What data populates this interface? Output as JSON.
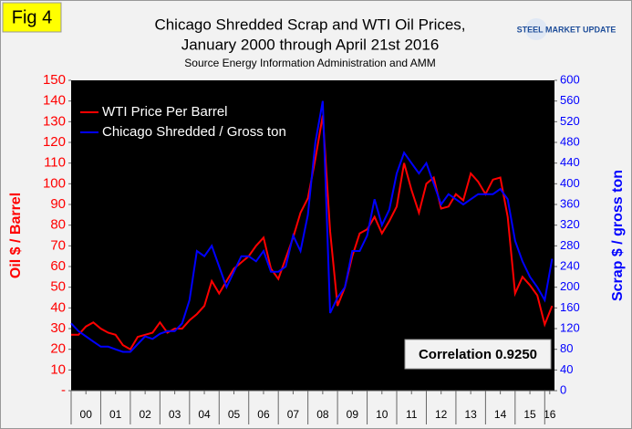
{
  "chart_data": {
    "type": "line",
    "title": "Chicago Shredded Scrap and WTI Oil Prices,",
    "subtitle": "January 2000 through April 21st 2016",
    "source": "Source Energy Information Administration and AMM",
    "fig_label": "Fig 4",
    "logo": "STEEL MARKET UPDATE",
    "annotation": "Correlation 0.9250",
    "y_label": "Oil $ / Barrel",
    "y2_label": "Scrap $ / gross ton",
    "legend": "upper left",
    "x": [
      2000,
      2000.25,
      2000.5,
      2000.75,
      2001,
      2001.25,
      2001.5,
      2001.75,
      2002,
      2002.25,
      2002.5,
      2002.75,
      2003,
      2003.25,
      2003.5,
      2003.75,
      2004,
      2004.25,
      2004.5,
      2004.75,
      2005,
      2005.25,
      2005.5,
      2005.75,
      2006,
      2006.25,
      2006.5,
      2006.75,
      2007,
      2007.25,
      2007.5,
      2007.75,
      2008,
      2008.25,
      2008.5,
      2008.75,
      2009,
      2009.25,
      2009.5,
      2009.75,
      2010,
      2010.25,
      2010.5,
      2010.75,
      2011,
      2011.25,
      2011.5,
      2011.75,
      2012,
      2012.25,
      2012.5,
      2012.75,
      2013,
      2013.25,
      2013.5,
      2013.75,
      2014,
      2014.25,
      2014.5,
      2014.75,
      2015,
      2015.25,
      2015.5,
      2015.75,
      2016,
      2016.25
    ],
    "xlim": [
      2000,
      2016.33
    ],
    "xticks": [
      {
        "value": 2000.5,
        "label": "00"
      },
      {
        "value": 2001.5,
        "label": "01"
      },
      {
        "value": 2002.5,
        "label": "02"
      },
      {
        "value": 2003.5,
        "label": "03"
      },
      {
        "value": 2004.5,
        "label": "04"
      },
      {
        "value": 2005.5,
        "label": "05"
      },
      {
        "value": 2006.5,
        "label": "06"
      },
      {
        "value": 2007.5,
        "label": "07"
      },
      {
        "value": 2008.5,
        "label": "08"
      },
      {
        "value": 2009.5,
        "label": "09"
      },
      {
        "value": 2010.5,
        "label": "10"
      },
      {
        "value": 2011.5,
        "label": "11"
      },
      {
        "value": 2012.5,
        "label": "12"
      },
      {
        "value": 2013.5,
        "label": "13"
      },
      {
        "value": 2014.5,
        "label": "14"
      },
      {
        "value": 2015.5,
        "label": "15"
      },
      {
        "value": 2016.17,
        "label": "16"
      }
    ],
    "ylim": [
      0,
      150
    ],
    "yticks": [
      {
        "value": 0,
        "label": "-"
      },
      10,
      20,
      30,
      40,
      50,
      60,
      70,
      80,
      90,
      100,
      110,
      120,
      130,
      140,
      150
    ],
    "y2lim": [
      0,
      600
    ],
    "y2ticks": [
      0,
      40,
      80,
      120,
      160,
      200,
      240,
      280,
      320,
      360,
      400,
      440,
      480,
      520,
      560,
      600
    ],
    "series": [
      {
        "name": "WTI Price Per Barrel",
        "color": "#ff0000",
        "values": [
          27,
          27,
          31,
          33,
          30,
          28,
          27,
          22,
          20,
          26,
          27,
          28,
          33,
          28,
          30,
          30,
          34,
          37,
          41,
          53,
          47,
          53,
          59,
          62,
          65,
          70,
          74,
          59,
          54,
          64,
          74,
          86,
          93,
          112,
          133,
          77,
          41,
          50,
          65,
          76,
          78,
          84,
          76,
          82,
          89,
          110,
          97,
          86,
          100,
          103,
          88,
          89,
          95,
          92,
          105,
          101,
          95,
          102,
          103,
          84,
          47,
          55,
          51,
          46,
          32,
          41
        ]
      },
      {
        "name": "Chicago Shredded / Gross ton",
        "color": "#0000ff",
        "axis": "y2",
        "values": [
          130,
          115,
          105,
          95,
          85,
          85,
          80,
          75,
          75,
          90,
          105,
          100,
          110,
          115,
          115,
          130,
          175,
          270,
          260,
          280,
          240,
          200,
          230,
          260,
          260,
          250,
          270,
          230,
          230,
          240,
          300,
          270,
          340,
          480,
          560,
          150,
          180,
          200,
          270,
          270,
          300,
          370,
          320,
          350,
          420,
          460,
          440,
          420,
          440,
          400,
          360,
          380,
          370,
          360,
          370,
          380,
          380,
          380,
          390,
          370,
          290,
          250,
          220,
          200,
          175,
          255
        ]
      }
    ]
  }
}
